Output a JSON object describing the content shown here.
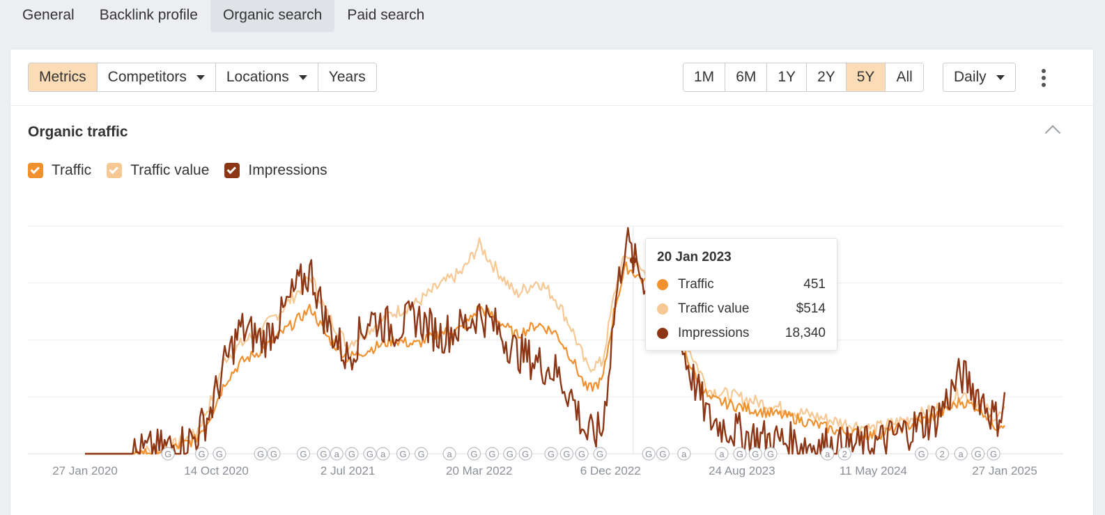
{
  "tabs": [
    {
      "label": "General",
      "active": false
    },
    {
      "label": "Backlink profile",
      "active": false
    },
    {
      "label": "Organic search",
      "active": true
    },
    {
      "label": "Paid search",
      "active": false
    }
  ],
  "toolbar": {
    "metrics": "Metrics",
    "competitors": "Competitors",
    "locations": "Locations",
    "years": "Years",
    "ranges": [
      "1M",
      "6M",
      "1Y",
      "2Y",
      "5Y",
      "All"
    ],
    "active_range": "5Y",
    "interval": "Daily"
  },
  "section": {
    "title": "Organic traffic"
  },
  "legend": [
    {
      "label": "Traffic",
      "color": "#f0902f",
      "checked": true
    },
    {
      "label": "Traffic value",
      "color": "#f6c894",
      "checked": true
    },
    {
      "label": "Impressions",
      "color": "#8c3615",
      "checked": true
    }
  ],
  "tooltip": {
    "date": "20 Jan 2023",
    "rows": [
      {
        "label": "Traffic",
        "value": "451",
        "color": "#f0902f"
      },
      {
        "label": "Traffic value",
        "value": "$514",
        "color": "#f6c894"
      },
      {
        "label": "Impressions",
        "value": "18,340",
        "color": "#8c3615"
      }
    ]
  },
  "chart_data": {
    "type": "line",
    "x_tick_labels": [
      "27 Jan 2020",
      "14 Oct 2020",
      "2 Jul 2021",
      "20 Mar 2022",
      "6 Dec 2022",
      "24 Aug 2023",
      "11 May 2024",
      "27 Jan 2025"
    ],
    "x_range": [
      "2020-01-27",
      "2025-01-27"
    ],
    "y_axis_labels_visible": false,
    "grid": true,
    "hover_date": "2023-01-20",
    "series": [
      {
        "name": "Traffic",
        "color": "#f0902f",
        "points": [
          [
            "2020-01-27",
            0
          ],
          [
            "2020-05-01",
            0
          ],
          [
            "2020-07-15",
            0.02
          ],
          [
            "2020-09-01",
            0.06
          ],
          [
            "2020-10-01",
            0.16
          ],
          [
            "2020-11-01",
            0.32
          ],
          [
            "2020-12-01",
            0.4
          ],
          [
            "2021-01-15",
            0.46
          ],
          [
            "2021-02-15",
            0.52
          ],
          [
            "2021-03-20",
            0.58
          ],
          [
            "2021-04-20",
            0.64
          ],
          [
            "2021-05-20",
            0.52
          ],
          [
            "2021-07-01",
            0.42
          ],
          [
            "2021-08-15",
            0.46
          ],
          [
            "2021-10-01",
            0.5
          ],
          [
            "2021-11-15",
            0.48
          ],
          [
            "2022-01-01",
            0.53
          ],
          [
            "2022-02-15",
            0.55
          ],
          [
            "2022-03-20",
            0.64
          ],
          [
            "2022-04-20",
            0.6
          ],
          [
            "2022-06-01",
            0.52
          ],
          [
            "2022-07-15",
            0.57
          ],
          [
            "2022-08-20",
            0.53
          ],
          [
            "2022-09-20",
            0.42
          ],
          [
            "2022-10-20",
            0.28
          ],
          [
            "2022-11-20",
            0.32
          ],
          [
            "2022-12-15",
            0.65
          ],
          [
            "2023-01-05",
            0.82
          ],
          [
            "2023-01-20",
            0.8
          ],
          [
            "2023-03-01",
            0.72
          ],
          [
            "2023-04-15",
            0.55
          ],
          [
            "2023-05-15",
            0.38
          ],
          [
            "2023-06-20",
            0.24
          ],
          [
            "2023-09-01",
            0.2
          ],
          [
            "2023-12-01",
            0.16
          ],
          [
            "2024-03-01",
            0.1
          ],
          [
            "2024-05-11",
            0.08
          ],
          [
            "2024-07-15",
            0.12
          ],
          [
            "2024-09-15",
            0.17
          ],
          [
            "2024-11-01",
            0.23
          ],
          [
            "2024-12-10",
            0.2
          ],
          [
            "2025-01-10",
            0.12
          ],
          [
            "2025-01-27",
            0.14
          ]
        ]
      },
      {
        "name": "Traffic value",
        "color": "#f6c894",
        "points": [
          [
            "2020-01-27",
            0
          ],
          [
            "2020-05-01",
            0
          ],
          [
            "2020-07-15",
            0.03
          ],
          [
            "2020-09-01",
            0.08
          ],
          [
            "2020-10-01",
            0.22
          ],
          [
            "2020-11-01",
            0.42
          ],
          [
            "2020-12-01",
            0.48
          ],
          [
            "2021-01-15",
            0.55
          ],
          [
            "2021-02-15",
            0.62
          ],
          [
            "2021-03-20",
            0.7
          ],
          [
            "2021-04-20",
            0.78
          ],
          [
            "2021-05-20",
            0.62
          ],
          [
            "2021-07-01",
            0.48
          ],
          [
            "2021-08-15",
            0.55
          ],
          [
            "2021-10-01",
            0.62
          ],
          [
            "2021-11-15",
            0.66
          ],
          [
            "2022-01-01",
            0.74
          ],
          [
            "2022-02-15",
            0.8
          ],
          [
            "2022-03-20",
            0.92
          ],
          [
            "2022-04-20",
            0.82
          ],
          [
            "2022-06-01",
            0.7
          ],
          [
            "2022-07-15",
            0.76
          ],
          [
            "2022-08-20",
            0.68
          ],
          [
            "2022-09-20",
            0.55
          ],
          [
            "2022-10-20",
            0.38
          ],
          [
            "2022-11-20",
            0.4
          ],
          [
            "2022-12-15",
            0.72
          ],
          [
            "2023-01-05",
            0.88
          ],
          [
            "2023-01-20",
            0.84
          ],
          [
            "2023-03-01",
            0.76
          ],
          [
            "2023-04-15",
            0.6
          ],
          [
            "2023-05-15",
            0.44
          ],
          [
            "2023-06-20",
            0.28
          ],
          [
            "2023-09-01",
            0.24
          ],
          [
            "2023-12-01",
            0.19
          ],
          [
            "2024-03-01",
            0.14
          ],
          [
            "2024-05-11",
            0.11
          ],
          [
            "2024-07-15",
            0.15
          ],
          [
            "2024-09-15",
            0.2
          ],
          [
            "2024-11-01",
            0.27
          ],
          [
            "2024-12-10",
            0.22
          ],
          [
            "2025-01-10",
            0.16
          ],
          [
            "2025-01-27",
            0.18
          ]
        ]
      },
      {
        "name": "Impressions",
        "color": "#8c3615",
        "points": [
          [
            "2020-01-27",
            0
          ],
          [
            "2020-05-01",
            0
          ],
          [
            "2020-07-15",
            0.03
          ],
          [
            "2020-09-01",
            0.07
          ],
          [
            "2020-10-01",
            0.18
          ],
          [
            "2020-11-01",
            0.4
          ],
          [
            "2020-12-01",
            0.55
          ],
          [
            "2021-01-15",
            0.5
          ],
          [
            "2021-02-15",
            0.58
          ],
          [
            "2021-03-20",
            0.72
          ],
          [
            "2021-04-20",
            0.8
          ],
          [
            "2021-05-20",
            0.58
          ],
          [
            "2021-07-01",
            0.42
          ],
          [
            "2021-08-15",
            0.6
          ],
          [
            "2021-10-01",
            0.55
          ],
          [
            "2021-11-15",
            0.6
          ],
          [
            "2022-01-01",
            0.52
          ],
          [
            "2022-02-15",
            0.56
          ],
          [
            "2022-03-20",
            0.62
          ],
          [
            "2022-04-20",
            0.56
          ],
          [
            "2022-06-01",
            0.45
          ],
          [
            "2022-07-15",
            0.4
          ],
          [
            "2022-08-20",
            0.36
          ],
          [
            "2022-09-20",
            0.25
          ],
          [
            "2022-10-20",
            0.08
          ],
          [
            "2022-11-20",
            0.1
          ],
          [
            "2022-12-15",
            0.65
          ],
          [
            "2023-01-05",
            0.95
          ],
          [
            "2023-01-20",
            0.85
          ],
          [
            "2023-03-01",
            0.7
          ],
          [
            "2023-04-15",
            0.55
          ],
          [
            "2023-05-15",
            0.35
          ],
          [
            "2023-06-20",
            0.15
          ],
          [
            "2023-09-01",
            0.08
          ],
          [
            "2023-12-01",
            0.05
          ],
          [
            "2024-03-01",
            0.03
          ],
          [
            "2024-05-11",
            0.04
          ],
          [
            "2024-07-15",
            0.1
          ],
          [
            "2024-09-15",
            0.16
          ],
          [
            "2024-11-01",
            0.35
          ],
          [
            "2024-12-10",
            0.25
          ],
          [
            "2025-01-10",
            0.15
          ],
          [
            "2025-01-27",
            0.22
          ]
        ]
      }
    ],
    "annotations": [
      {
        "date": "2020-07-10",
        "label": "G"
      },
      {
        "date": "2020-09-15",
        "label": "G"
      },
      {
        "date": "2020-10-20",
        "label": "G"
      },
      {
        "date": "2021-01-10",
        "label": "G"
      },
      {
        "date": "2021-02-05",
        "label": "G"
      },
      {
        "date": "2021-04-05",
        "label": "G"
      },
      {
        "date": "2021-05-15",
        "label": "G"
      },
      {
        "date": "2021-06-10",
        "label": "a"
      },
      {
        "date": "2021-07-10",
        "label": "G"
      },
      {
        "date": "2021-08-15",
        "label": "G"
      },
      {
        "date": "2021-09-10",
        "label": "a"
      },
      {
        "date": "2021-10-20",
        "label": "G"
      },
      {
        "date": "2021-11-25",
        "label": "G"
      },
      {
        "date": "2022-01-20",
        "label": "a"
      },
      {
        "date": "2022-03-10",
        "label": "G"
      },
      {
        "date": "2022-04-15",
        "label": "G"
      },
      {
        "date": "2022-05-20",
        "label": "G"
      },
      {
        "date": "2022-06-20",
        "label": "G"
      },
      {
        "date": "2022-08-10",
        "label": "G"
      },
      {
        "date": "2022-09-10",
        "label": "G"
      },
      {
        "date": "2022-10-10",
        "label": "G"
      },
      {
        "date": "2022-11-15",
        "label": "G"
      },
      {
        "date": "2023-02-20",
        "label": "G"
      },
      {
        "date": "2023-03-20",
        "label": "G"
      },
      {
        "date": "2023-05-01",
        "label": "a"
      },
      {
        "date": "2023-07-15",
        "label": "a"
      },
      {
        "date": "2023-08-20",
        "label": "G"
      },
      {
        "date": "2023-09-20",
        "label": "G"
      },
      {
        "date": "2023-10-20",
        "label": "G"
      },
      {
        "date": "2024-02-10",
        "label": "a"
      },
      {
        "date": "2024-03-15",
        "label": "2"
      },
      {
        "date": "2024-08-15",
        "label": "G"
      },
      {
        "date": "2024-09-25",
        "label": "2"
      },
      {
        "date": "2024-11-01",
        "label": "a"
      },
      {
        "date": "2024-12-05",
        "label": "G"
      },
      {
        "date": "2025-01-05",
        "label": "G"
      }
    ]
  }
}
